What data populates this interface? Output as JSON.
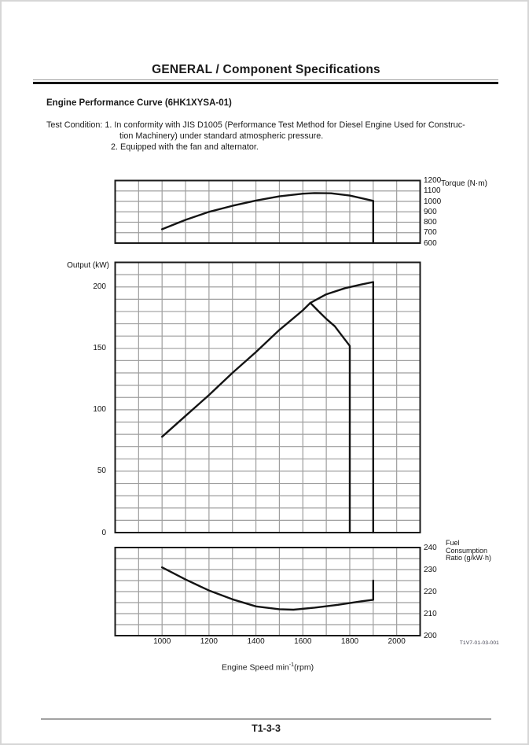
{
  "header": {
    "title": "GENERAL / Component Specifications"
  },
  "section": {
    "heading": "Engine Performance Curve (6HK1XYSA-01)",
    "condition_line1": "Test Condition: 1. In conformity with JIS D1005 (Performance Test Method for Diesel Engine Used for Construc-",
    "condition_line2": "tion Machinery) under standard atmospheric pressure.",
    "condition_line3": "2. Equipped with the fan and alternator."
  },
  "figure": {
    "code": "T1V7-01-03-001"
  },
  "footer": {
    "page_number": "T1-3-3"
  },
  "colors": {
    "curve": "#141414",
    "grid": "#9e9e9e",
    "border": "#1a1a1a"
  },
  "chart_data": [
    {
      "id": "torque",
      "type": "line",
      "axis_title": "Torque (N·m)",
      "x_range": [
        800,
        2100
      ],
      "x_grid_step": 100,
      "y_range": [
        600,
        1200
      ],
      "y_grid_step": 100,
      "y_ticks": [
        1200,
        1100,
        1000,
        900,
        800,
        700,
        600
      ],
      "y_tick_side": "right",
      "series": [
        {
          "name": "torque-curve",
          "points": [
            [
              1000,
              733
            ],
            [
              1100,
              823
            ],
            [
              1200,
              900
            ],
            [
              1300,
              958
            ],
            [
              1400,
              1008
            ],
            [
              1500,
              1048
            ],
            [
              1600,
              1074
            ],
            [
              1650,
              1080
            ],
            [
              1720,
              1078
            ],
            [
              1800,
              1056
            ],
            [
              1900,
              1005
            ],
            [
              1900,
              600
            ]
          ]
        }
      ]
    },
    {
      "id": "output",
      "type": "line",
      "axis_title": "Output (kW)",
      "x_range": [
        800,
        2100
      ],
      "x_grid_step": 100,
      "y_range": [
        0,
        220
      ],
      "y_grid_step": 10,
      "y_ticks": [
        200,
        150,
        100,
        50,
        0
      ],
      "y_tick_side": "left",
      "series": [
        {
          "name": "output-curve",
          "points": [
            [
              1000,
              78
            ],
            [
              1100,
              95
            ],
            [
              1200,
              112
            ],
            [
              1300,
              130
            ],
            [
              1400,
              147
            ],
            [
              1500,
              165
            ],
            [
              1600,
              181
            ],
            [
              1632,
              187
            ],
            [
              1700,
              194
            ],
            [
              1780,
              199
            ],
            [
              1850,
              202
            ],
            [
              1900,
              204
            ],
            [
              1900,
              0
            ]
          ]
        },
        {
          "name": "droop-line",
          "points": [
            [
              1632,
              187
            ],
            [
              1668,
              180
            ],
            [
              1700,
              174
            ],
            [
              1736,
              168
            ],
            [
              1768,
              160
            ],
            [
              1800,
              152
            ],
            [
              1800,
              0
            ]
          ]
        }
      ]
    },
    {
      "id": "fuel",
      "type": "line",
      "axis_title_lines": [
        "Fuel",
        "Consumption",
        "Ratio (g/kW·h)"
      ],
      "x_range": [
        800,
        2100
      ],
      "x_grid_step": 100,
      "y_range": [
        200,
        240
      ],
      "y_grid_step": 5,
      "y_ticks": [
        240,
        230,
        220,
        210,
        200
      ],
      "y_tick_side": "right",
      "x_ticks": [
        1000,
        1200,
        1400,
        1600,
        1800,
        2000
      ],
      "series": [
        {
          "name": "fuel-consumption-curve",
          "points": [
            [
              1000,
              231
            ],
            [
              1100,
              225.5
            ],
            [
              1200,
              220.5
            ],
            [
              1300,
              216.5
            ],
            [
              1400,
              213.3
            ],
            [
              1500,
              212
            ],
            [
              1560,
              211.8
            ],
            [
              1650,
              212.7
            ],
            [
              1750,
              214
            ],
            [
              1850,
              215.6
            ],
            [
              1900,
              216.3
            ],
            [
              1900,
              225
            ]
          ]
        }
      ]
    }
  ],
  "x_axis": {
    "label_pre": "Engine Speed min",
    "label_sup": "-1",
    "label_post": "(rpm)"
  }
}
